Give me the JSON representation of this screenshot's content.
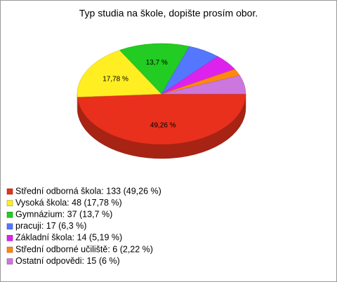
{
  "chart_data": {
    "type": "pie3d",
    "title": "Typ studia na škole, dopište prosím obor.",
    "categories": [
      "Střední odborná škola: 133 (49,26 %)",
      "Vysoká škola: 48 (17,78 %)",
      "Gymnázium: 37 (13,7 %)",
      "pracuji: 17 (6,3 %)",
      "Základní škola: 14 (5,19 %)",
      "Střední odborné učiliště: 6 (2,22 %)",
      "Ostatní odpovědi: 15 (6 %)"
    ],
    "values": [
      49.26,
      17.78,
      13.7,
      6.3,
      5.19,
      2.22,
      6
    ],
    "value_labels": [
      "49,26 %",
      "17,78 %",
      "13,7 %",
      null,
      null,
      null,
      null
    ],
    "colors": [
      "#e8301c",
      "#ffee22",
      "#22cc22",
      "#5577ff",
      "#dd22ee",
      "#ff8811",
      "#cc77dd"
    ]
  }
}
